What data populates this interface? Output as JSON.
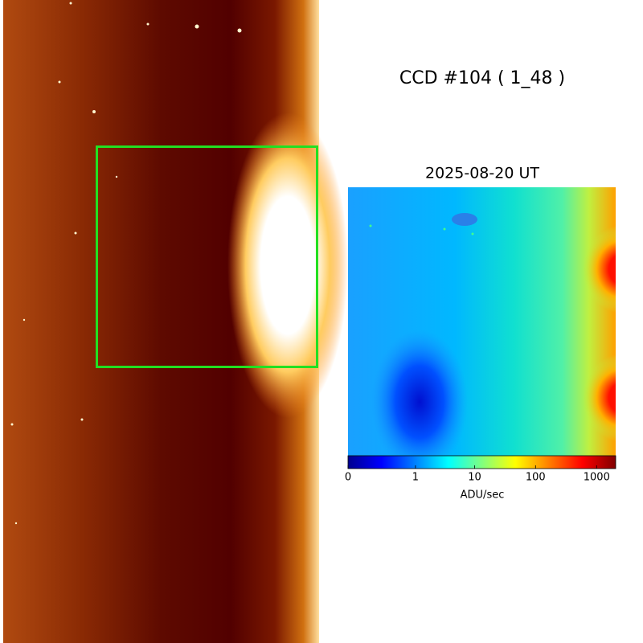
{
  "title": "CCD #104 ( 1_48 )",
  "panel": {
    "title": "2025-08-20 UT",
    "colorbar": {
      "label": "ADU/sec",
      "lim": [
        0,
        2050
      ],
      "ticks": [
        0,
        1,
        10,
        100,
        1000
      ],
      "scale": "asinh"
    }
  }
}
